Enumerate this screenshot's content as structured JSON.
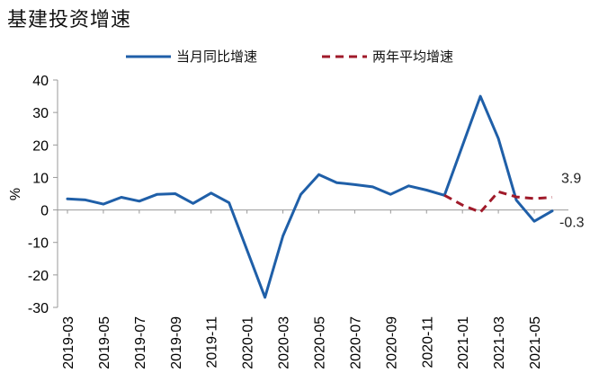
{
  "chart_data": {
    "type": "line",
    "title": "基建投资增速",
    "ylabel": "%",
    "ylim": [
      -30,
      40
    ],
    "yticks": [
      40,
      30,
      20,
      10,
      0,
      -10,
      -20,
      -30
    ],
    "x": [
      "2019-03",
      "2019-04",
      "2019-05",
      "2019-06",
      "2019-07",
      "2019-08",
      "2019-09",
      "2019-10",
      "2019-11",
      "2019-12",
      "2020-01",
      "2020-02",
      "2020-03",
      "2020-04",
      "2020-05",
      "2020-06",
      "2020-07",
      "2020-08",
      "2020-09",
      "2020-10",
      "2020-11",
      "2020-12",
      "2021-01",
      "2021-02",
      "2021-03",
      "2021-04",
      "2021-05",
      "2021-06"
    ],
    "xtick_labels": [
      "2019-03",
      "2019-05",
      "2019-07",
      "2019-09",
      "2019-11",
      "2020-01",
      "2020-03",
      "2020-05",
      "2020-07",
      "2020-09",
      "2020-11",
      "2021-01",
      "2021-03",
      "2021-05"
    ],
    "legend_position": "top",
    "grid": false,
    "series": [
      {
        "name": "当月同比增速",
        "color": "#1f5fa8",
        "style": "solid",
        "values": [
          3.4,
          3.1,
          1.8,
          3.9,
          2.7,
          4.8,
          5.0,
          2.0,
          5.2,
          2.2,
          null,
          -26.9,
          -8.0,
          4.8,
          10.9,
          8.4,
          7.8,
          7.1,
          4.8,
          7.4,
          6.1,
          4.5,
          null,
          35.0,
          22.0,
          3.0,
          -3.5,
          -0.3
        ]
      },
      {
        "name": "两年平均增速",
        "color": "#a01a2a",
        "style": "dashed",
        "values": [
          null,
          null,
          null,
          null,
          null,
          null,
          null,
          null,
          null,
          null,
          null,
          null,
          null,
          null,
          null,
          null,
          null,
          null,
          null,
          null,
          null,
          4.5,
          1.5,
          -0.7,
          5.6,
          4.0,
          3.5,
          3.9
        ]
      }
    ],
    "data_labels": [
      {
        "text": "3.9",
        "series": 1,
        "index": 27
      },
      {
        "text": "-0.3",
        "series": 0,
        "index": 27
      }
    ]
  }
}
